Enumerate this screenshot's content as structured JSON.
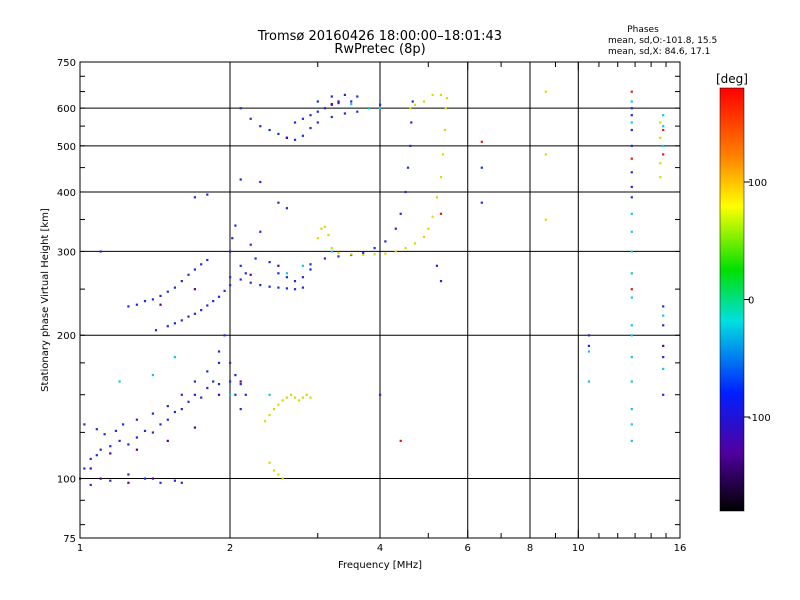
{
  "chart_data": {
    "type": "scatter",
    "title": "Tromsø 20160426 18:00:00–18:01:43",
    "subtitle": "RwPretec (8p)",
    "stats": {
      "heading": "Phases",
      "line1": "mean, sd,O:-101.8, 15.5",
      "line2": "mean, sd,X:  84.6, 17.1"
    },
    "xlabel": "Frequency [MHz]",
    "ylabel": "Stationary phase Virtual Height [km]",
    "xscale": "log",
    "yscale": "log",
    "xlim": [
      1,
      16
    ],
    "ylim": [
      75,
      750
    ],
    "xticks": [
      1,
      2,
      4,
      6,
      8,
      10,
      16
    ],
    "xtick_labels": [
      "1",
      "2",
      "4",
      "6",
      "8",
      "10",
      "16"
    ],
    "yticks": [
      75,
      100,
      200,
      300,
      400,
      500,
      600,
      750
    ],
    "ytick_labels": [
      "75",
      "100",
      "200",
      "300",
      "400",
      "500",
      "600",
      "750"
    ],
    "grid": true,
    "colorbar": {
      "label": "[deg]",
      "range": [
        -180,
        180
      ],
      "ticks": [
        100,
        0,
        -100
      ],
      "tick_labels": [
        "100",
        "0",
        "-100"
      ]
    },
    "series": [
      {
        "description": "O-mode traces (phase about -100)",
        "phase": -100,
        "color": "#1e2cd8",
        "points": [
          [
            1.0,
            100
          ],
          [
            1.02,
            105
          ],
          [
            1.05,
            110
          ],
          [
            1.08,
            112
          ],
          [
            1.1,
            115
          ],
          [
            1.15,
            117
          ],
          [
            1.2,
            120
          ],
          [
            1.25,
            118
          ],
          [
            1.3,
            122
          ],
          [
            1.35,
            126
          ],
          [
            1.4,
            125
          ],
          [
            1.45,
            130
          ],
          [
            1.5,
            133
          ],
          [
            1.55,
            138
          ],
          [
            1.6,
            140
          ],
          [
            1.65,
            145
          ],
          [
            1.7,
            150
          ],
          [
            1.75,
            148
          ],
          [
            1.8,
            155
          ],
          [
            1.85,
            160
          ],
          [
            1.9,
            158
          ],
          [
            2.0,
            160
          ],
          [
            2.05,
            150
          ],
          [
            2.1,
            140
          ],
          [
            1.02,
            130
          ],
          [
            1.08,
            127
          ],
          [
            1.12,
            124
          ],
          [
            1.18,
            126
          ],
          [
            1.22,
            130
          ],
          [
            1.3,
            133
          ],
          [
            1.4,
            137
          ],
          [
            1.5,
            142
          ],
          [
            1.6,
            150
          ],
          [
            1.7,
            160
          ],
          [
            1.8,
            168
          ],
          [
            1.9,
            175
          ],
          [
            1.05,
            97
          ],
          [
            1.15,
            99
          ],
          [
            1.25,
            102
          ],
          [
            1.35,
            100
          ],
          [
            1.45,
            98
          ],
          [
            1.55,
            99
          ],
          [
            1.6,
            98
          ],
          [
            1.25,
            230
          ],
          [
            1.3,
            232
          ],
          [
            1.35,
            236
          ],
          [
            1.4,
            238
          ],
          [
            1.45,
            242
          ],
          [
            1.5,
            247
          ],
          [
            1.55,
            252
          ],
          [
            1.6,
            260
          ],
          [
            1.65,
            268
          ],
          [
            1.7,
            275
          ],
          [
            1.75,
            282
          ],
          [
            1.8,
            288
          ],
          [
            1.42,
            205
          ],
          [
            1.5,
            209
          ],
          [
            1.55,
            212
          ],
          [
            1.6,
            215
          ],
          [
            1.65,
            219
          ],
          [
            1.7,
            222
          ],
          [
            1.75,
            226
          ],
          [
            1.8,
            231
          ],
          [
            1.85,
            236
          ],
          [
            1.9,
            241
          ],
          [
            1.95,
            248
          ],
          [
            2.0,
            255
          ],
          [
            2.0,
            265
          ],
          [
            2.1,
            262
          ],
          [
            2.2,
            258
          ],
          [
            2.3,
            255
          ],
          [
            2.4,
            253
          ],
          [
            2.5,
            252
          ],
          [
            2.6,
            251
          ],
          [
            2.7,
            250
          ],
          [
            2.8,
            252
          ],
          [
            2.0,
            300
          ],
          [
            2.02,
            320
          ],
          [
            2.05,
            340
          ],
          [
            2.1,
            280
          ],
          [
            2.15,
            270
          ],
          [
            2.2,
            310
          ],
          [
            2.25,
            290
          ],
          [
            2.3,
            330
          ],
          [
            2.4,
            285
          ],
          [
            2.5,
            270
          ],
          [
            2.6,
            265
          ],
          [
            2.7,
            260
          ],
          [
            2.8,
            265
          ],
          [
            2.9,
            275
          ],
          [
            2.9,
            282
          ],
          [
            3.1,
            290
          ],
          [
            3.3,
            293
          ],
          [
            3.5,
            295
          ],
          [
            3.7,
            298
          ],
          [
            3.9,
            305
          ],
          [
            4.1,
            315
          ],
          [
            4.3,
            335
          ],
          [
            4.4,
            360
          ],
          [
            4.5,
            400
          ],
          [
            4.55,
            450
          ],
          [
            4.6,
            500
          ],
          [
            4.62,
            560
          ],
          [
            4.65,
            620
          ],
          [
            2.1,
            600
          ],
          [
            2.2,
            570
          ],
          [
            2.3,
            550
          ],
          [
            2.4,
            540
          ],
          [
            2.5,
            530
          ],
          [
            2.6,
            520
          ],
          [
            2.7,
            515
          ],
          [
            2.8,
            525
          ],
          [
            2.9,
            545
          ],
          [
            3.0,
            560
          ],
          [
            3.2,
            575
          ],
          [
            3.4,
            585
          ],
          [
            3.6,
            590
          ],
          [
            3.8,
            600
          ],
          [
            4.0,
            610
          ],
          [
            2.7,
            560
          ],
          [
            2.8,
            570
          ],
          [
            2.9,
            580
          ],
          [
            3.0,
            590
          ],
          [
            3.1,
            600
          ],
          [
            3.2,
            610
          ],
          [
            3.3,
            615
          ],
          [
            3.5,
            620
          ],
          [
            3.0,
            620
          ],
          [
            3.2,
            635
          ],
          [
            3.4,
            640
          ],
          [
            3.6,
            635
          ],
          [
            1.7,
            390
          ],
          [
            1.8,
            395
          ],
          [
            2.1,
            425
          ],
          [
            2.3,
            420
          ],
          [
            2.5,
            380
          ],
          [
            2.6,
            370
          ],
          [
            1.1,
            300
          ],
          [
            1.9,
            185
          ],
          [
            1.95,
            200
          ],
          [
            2.0,
            175
          ],
          [
            2.05,
            165
          ],
          [
            2.1,
            158
          ],
          [
            2.15,
            150
          ],
          [
            6.4,
            380
          ],
          [
            6.4,
            450
          ],
          [
            5.2,
            280
          ],
          [
            5.3,
            260
          ],
          [
            4.0,
            150
          ],
          [
            12.8,
            390
          ],
          [
            12.8,
            410
          ],
          [
            12.8,
            440
          ],
          [
            12.8,
            500
          ],
          [
            12.8,
            540
          ],
          [
            12.8,
            580
          ],
          [
            12.8,
            600
          ],
          [
            14.8,
            230
          ],
          [
            14.8,
            180
          ],
          [
            14.8,
            150
          ],
          [
            10.5,
            200
          ],
          [
            10.5,
            190
          ],
          [
            14.8,
            210
          ]
        ]
      },
      {
        "description": "X-mode traces (phase about +85)",
        "phase": 85,
        "color": "#dcd800",
        "points": [
          [
            2.35,
            132
          ],
          [
            2.4,
            136
          ],
          [
            2.45,
            140
          ],
          [
            2.5,
            143
          ],
          [
            2.55,
            146
          ],
          [
            2.6,
            148
          ],
          [
            2.65,
            150
          ],
          [
            2.7,
            148
          ],
          [
            2.75,
            146
          ],
          [
            2.8,
            148
          ],
          [
            2.85,
            150
          ],
          [
            2.9,
            148
          ],
          [
            2.4,
            108
          ],
          [
            2.45,
            104
          ],
          [
            2.5,
            102
          ],
          [
            2.55,
            100
          ],
          [
            3.0,
            320
          ],
          [
            3.05,
            335
          ],
          [
            3.1,
            338
          ],
          [
            3.15,
            325
          ],
          [
            3.2,
            305
          ],
          [
            3.3,
            298
          ],
          [
            3.5,
            296
          ],
          [
            3.7,
            295
          ],
          [
            3.9,
            296
          ],
          [
            4.1,
            297
          ],
          [
            4.3,
            300
          ],
          [
            4.5,
            305
          ],
          [
            4.7,
            312
          ],
          [
            4.9,
            322
          ],
          [
            5.0,
            335
          ],
          [
            5.1,
            355
          ],
          [
            5.2,
            390
          ],
          [
            5.3,
            430
          ],
          [
            5.35,
            480
          ],
          [
            5.4,
            540
          ],
          [
            5.42,
            600
          ],
          [
            5.45,
            630
          ],
          [
            4.6,
            600
          ],
          [
            4.7,
            610
          ],
          [
            4.9,
            620
          ],
          [
            5.1,
            640
          ],
          [
            5.3,
            640
          ],
          [
            8.6,
            650
          ],
          [
            8.6,
            480
          ],
          [
            8.6,
            350
          ],
          [
            14.6,
            560
          ],
          [
            14.6,
            520
          ],
          [
            14.6,
            460
          ],
          [
            14.6,
            430
          ]
        ]
      },
      {
        "description": "Cyan / mixed-phase scatter (phase about -30)",
        "phase": -30,
        "color": "#10c8e0",
        "points": [
          [
            1.2,
            160
          ],
          [
            1.4,
            165
          ],
          [
            1.55,
            180
          ],
          [
            2.0,
            150
          ],
          [
            2.4,
            150
          ],
          [
            2.6,
            270
          ],
          [
            2.8,
            280
          ],
          [
            3.2,
            300
          ],
          [
            3.5,
            612
          ],
          [
            3.8,
            600
          ],
          [
            4.0,
            600
          ],
          [
            10.5,
            185
          ],
          [
            10.5,
            160
          ],
          [
            12.8,
            210
          ],
          [
            12.8,
            240
          ],
          [
            12.8,
            270
          ],
          [
            12.8,
            300
          ],
          [
            12.8,
            330
          ],
          [
            12.8,
            360
          ],
          [
            12.8,
            200
          ],
          [
            12.8,
            180
          ],
          [
            12.8,
            160
          ],
          [
            12.8,
            140
          ],
          [
            12.8,
            130
          ],
          [
            12.8,
            120
          ],
          [
            12.8,
            560
          ],
          [
            12.8,
            620
          ],
          [
            14.8,
            580
          ],
          [
            14.8,
            550
          ],
          [
            14.8,
            500
          ],
          [
            14.8,
            220
          ],
          [
            14.8,
            170
          ]
        ]
      },
      {
        "description": "Red / orange scatter (phase about +150)",
        "phase": 150,
        "color": "#e01818",
        "points": [
          [
            6.4,
            510
          ],
          [
            4.4,
            120
          ],
          [
            12.8,
            650
          ],
          [
            12.8,
            470
          ],
          [
            12.8,
            250
          ],
          [
            14.8,
            540
          ],
          [
            14.8,
            480
          ],
          [
            5.3,
            360
          ]
        ]
      },
      {
        "description": "Dark purple scatter (phase about -150)",
        "phase": -150,
        "color": "#5a0090",
        "points": [
          [
            1.05,
            105
          ],
          [
            1.15,
            113
          ],
          [
            1.3,
            115
          ],
          [
            1.5,
            120
          ],
          [
            1.7,
            128
          ],
          [
            1.9,
            150
          ],
          [
            2.1,
            160
          ],
          [
            1.45,
            232
          ],
          [
            1.7,
            250
          ],
          [
            2.2,
            268
          ],
          [
            2.5,
            280
          ],
          [
            3.2,
            612
          ],
          [
            3.3,
            620
          ],
          [
            2.6,
            520
          ],
          [
            1.1,
            100
          ],
          [
            1.25,
            98
          ],
          [
            1.4,
            100
          ],
          [
            14.8,
            190
          ]
        ]
      }
    ]
  }
}
